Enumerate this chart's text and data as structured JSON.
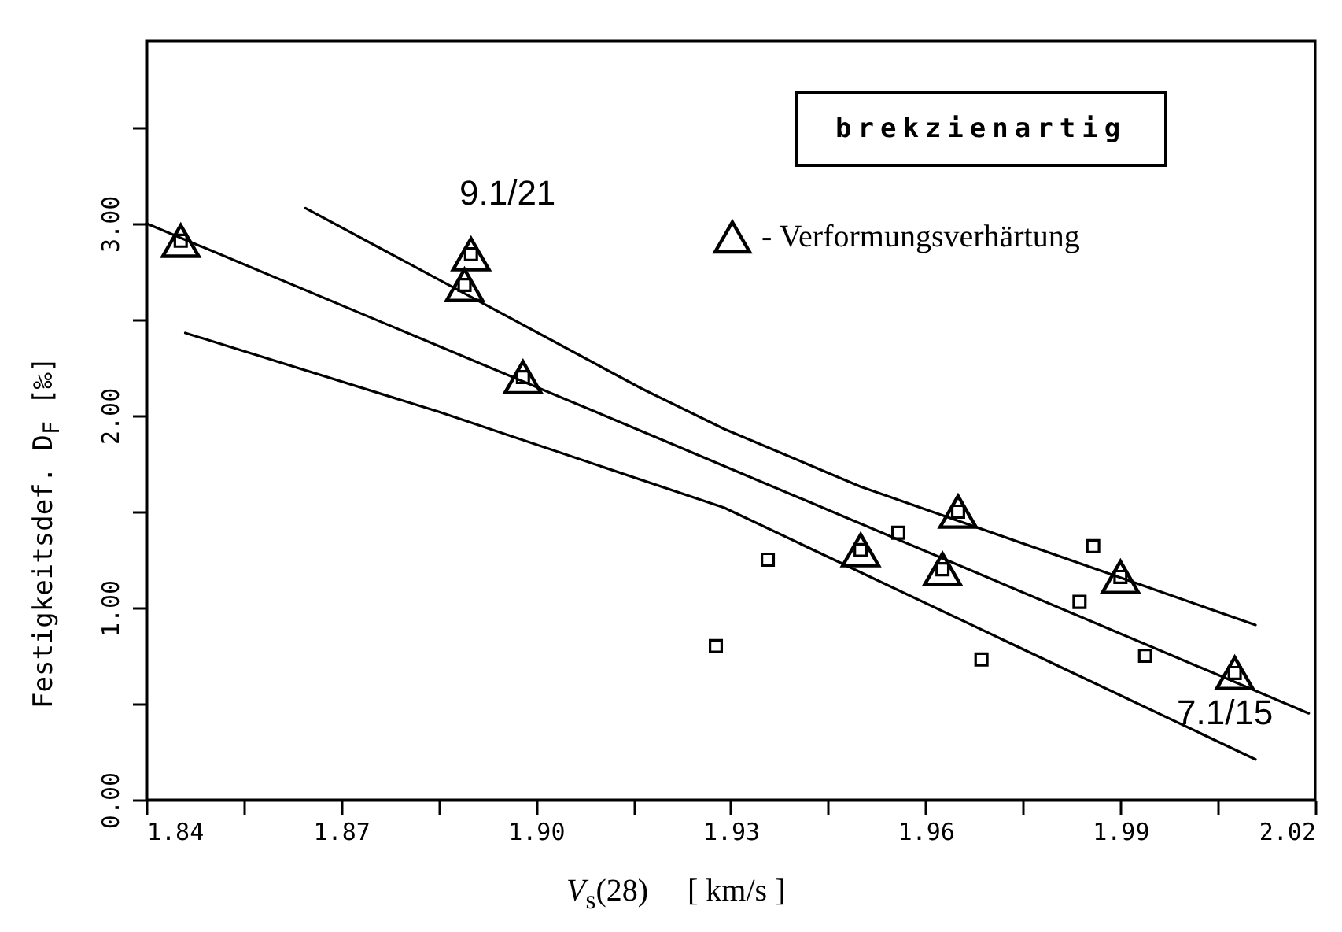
{
  "chart_data": {
    "type": "scatter",
    "xlabel": "V$_{s}$(28)     [ km/s ]",
    "ylabel": "Festigkeitsdef. D$_{F}$ [‰]",
    "xlim": [
      1.84,
      2.02
    ],
    "ylim": [
      0,
      3.95
    ],
    "xticks": [
      1.84,
      {
        "value": 1.855,
        "label": null
      },
      1.87,
      {
        "value": 1.885,
        "label": null
      },
      {
        "value": 1.9,
        "label": "1.90"
      },
      {
        "value": 1.915,
        "label": null
      },
      1.93,
      {
        "value": 1.945,
        "label": null
      },
      1.96,
      {
        "value": 1.975,
        "label": null
      },
      1.99,
      {
        "value": 2.005,
        "label": null
      },
      2.02
    ],
    "yticks": [
      {
        "value": 0,
        "label": "0.00"
      },
      {
        "value": 0.5,
        "label": null
      },
      {
        "value": 1,
        "label": "1.00"
      },
      {
        "value": 1.5,
        "label": null
      },
      {
        "value": 2,
        "label": "2.00"
      },
      {
        "value": 2.5,
        "label": null
      },
      {
        "value": 3,
        "label": "3.00"
      },
      {
        "value": 3.5,
        "label": null
      }
    ],
    "grid": false,
    "legend": "top right",
    "series": [
      {
        "type": "line",
        "color": "#000000",
        "marker": "none",
        "x": [
          1.8645,
          1.9163,
          1.929,
          1.95,
          2.0108
        ],
        "values": [
          3.08,
          2.14,
          1.93,
          1.63,
          0.91
        ]
      },
      {
        "type": "line",
        "color": "#000000",
        "marker": "none",
        "x": [
          1.84,
          1.919,
          2.019
        ],
        "values": [
          3.0,
          1.88,
          0.45
        ]
      },
      {
        "type": "line",
        "color": "#000000",
        "marker": "none",
        "x": [
          1.846,
          1.885,
          1.929,
          2.0108
        ],
        "values": [
          2.43,
          2.02,
          1.52,
          0.21
        ]
      },
      {
        "color": "#000000",
        "marker": "square",
        "x": [
          1.8453,
          1.89,
          1.889,
          1.898,
          1.95,
          1.965,
          1.9626,
          1.99,
          2.0076,
          1.9558,
          1.9357,
          1.9277,
          1.9686,
          1.9858,
          1.9837,
          1.9938
        ],
        "values": [
          2.91,
          2.84,
          2.68,
          2.2,
          1.3,
          1.5,
          1.2,
          1.16,
          0.66,
          1.39,
          1.25,
          0.8,
          0.73,
          1.32,
          1.03,
          0.75
        ]
      },
      {
        "name": "- Verformungsverhärtung",
        "color": "#000000",
        "marker": "triangle",
        "x": [
          1.8453,
          1.89,
          1.889,
          1.898,
          1.95,
          1.965,
          1.9626,
          1.99,
          2.0076
        ],
        "values": [
          2.91,
          2.84,
          2.68,
          2.2,
          1.3,
          1.5,
          1.2,
          1.16,
          0.66
        ]
      }
    ],
    "annotations": [
      "brekzienartig",
      "9.1/21",
      "7.1/15"
    ]
  }
}
